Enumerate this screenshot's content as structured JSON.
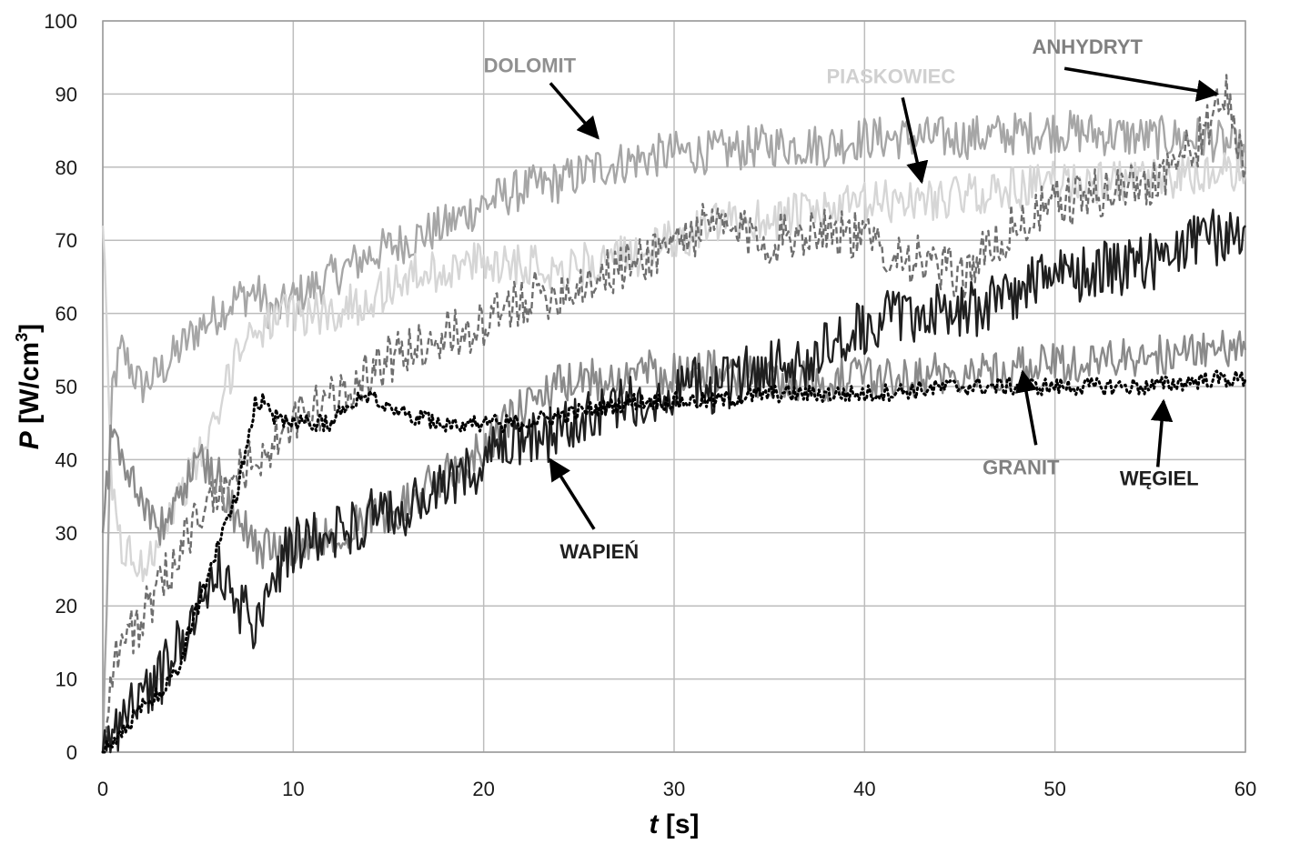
{
  "chart_data": {
    "type": "line",
    "title": "",
    "xlabel": {
      "italic": "t",
      "rest": " [s]"
    },
    "ylabel": {
      "italic": "P",
      "rest": " [W/cm",
      "sup": "3",
      "end": "]"
    },
    "xlim": [
      0,
      60
    ],
    "ylim": [
      0,
      100
    ],
    "xticks": [
      "0",
      "10",
      "20",
      "30",
      "40",
      "50",
      "60"
    ],
    "yticks": [
      "0",
      "10",
      "20",
      "30",
      "40",
      "50",
      "60",
      "70",
      "80",
      "90",
      "100"
    ],
    "grid": true,
    "legend": "none (inline annotations with arrows)",
    "series": [
      {
        "name": "DOLOMIT",
        "color": "#a6a6a6",
        "dash": "solid",
        "x": [
          0,
          0.5,
          1,
          2,
          3,
          4,
          5,
          6,
          7,
          8,
          9,
          10,
          12,
          14,
          16,
          18,
          20,
          22,
          24,
          26,
          28,
          30,
          32,
          35,
          38,
          40,
          45,
          50,
          55,
          58,
          60
        ],
        "y": [
          0,
          50,
          55,
          50,
          52,
          55,
          58,
          60,
          62,
          63,
          60,
          62,
          65,
          68,
          70,
          72,
          75,
          77,
          78,
          80,
          81,
          82,
          82,
          83,
          83,
          84,
          84,
          85,
          84,
          84,
          82
        ]
      },
      {
        "name": "PIASKOWIEC",
        "color": "#d6d6d6",
        "dash": "solid",
        "x": [
          0,
          0.5,
          1,
          2,
          3,
          4,
          5,
          6,
          7,
          8,
          10,
          12,
          14,
          16,
          18,
          20,
          22,
          24,
          26,
          28,
          30,
          32,
          35,
          38,
          40,
          45,
          50,
          55,
          58,
          60
        ],
        "y": [
          72,
          35,
          28,
          25,
          30,
          35,
          40,
          45,
          55,
          58,
          60,
          60,
          62,
          65,
          66,
          67,
          67,
          66,
          67,
          68,
          70,
          72,
          73,
          74,
          75,
          76,
          78,
          78,
          79,
          79
        ]
      },
      {
        "name": "ANHYDRYT",
        "color": "#6f6f6f",
        "dash": "dashed",
        "x": [
          0,
          0.5,
          1,
          2,
          3,
          4,
          5,
          6,
          7,
          8,
          9,
          10,
          12,
          14,
          16,
          18,
          20,
          22,
          24,
          26,
          28,
          30,
          32,
          35,
          38,
          40,
          42,
          45,
          48,
          50,
          55,
          57,
          58,
          59,
          60
        ],
        "y": [
          0,
          12,
          15,
          18,
          22,
          28,
          32,
          35,
          38,
          40,
          42,
          45,
          48,
          52,
          55,
          57,
          58,
          62,
          63,
          65,
          67,
          70,
          72,
          70,
          72,
          70,
          68,
          65,
          72,
          75,
          78,
          82,
          85,
          90,
          80
        ]
      },
      {
        "name": "GRANIT",
        "color": "#8a8a8a",
        "dash": "solid",
        "x": [
          0,
          0.5,
          1,
          2,
          3,
          4,
          5,
          6,
          7,
          8,
          10,
          12,
          14,
          16,
          18,
          20,
          22,
          24,
          26,
          28,
          30,
          32,
          35,
          38,
          40,
          45,
          50,
          55,
          58,
          60
        ],
        "y": [
          30,
          45,
          40,
          35,
          30,
          35,
          40,
          38,
          32,
          28,
          28,
          30,
          32,
          34,
          38,
          42,
          47,
          50,
          51,
          52,
          52,
          52,
          51,
          51,
          51,
          52,
          53,
          54,
          55,
          55
        ]
      },
      {
        "name": "WAPIEŃ",
        "color": "#1f1f1f",
        "dash": "solid",
        "x": [
          0,
          0.5,
          1,
          2,
          3,
          4,
          5,
          6,
          7,
          8,
          9,
          10,
          12,
          14,
          16,
          18,
          20,
          22,
          24,
          26,
          28,
          30,
          32,
          34,
          36,
          38,
          40,
          42,
          45,
          48,
          50,
          55,
          58,
          60
        ],
        "y": [
          0,
          2,
          5,
          8,
          10,
          15,
          20,
          25,
          20,
          18,
          25,
          28,
          30,
          32,
          33,
          36,
          40,
          42,
          44,
          46,
          48,
          50,
          50,
          52,
          53,
          55,
          58,
          60,
          60,
          63,
          65,
          67,
          70,
          72
        ]
      },
      {
        "name": "WĘGIEL",
        "color": "#000000",
        "dash": "dotted",
        "x": [
          0,
          0.5,
          1,
          2,
          3,
          4,
          5,
          6,
          7,
          8,
          8.5,
          9,
          10,
          11,
          12,
          13,
          14,
          16,
          18,
          20,
          22,
          24,
          26,
          28,
          30,
          32,
          35,
          38,
          40,
          45,
          50,
          55,
          58,
          60
        ],
        "y": [
          0,
          1,
          3,
          6,
          8,
          12,
          20,
          28,
          35,
          48,
          48,
          46,
          45,
          45,
          45,
          48,
          49,
          46,
          45,
          45,
          45,
          46,
          47,
          48,
          48,
          48,
          49,
          49,
          49,
          50,
          50,
          50,
          51,
          51
        ]
      }
    ],
    "annotations": [
      {
        "text": "DOLOMIT",
        "color": "#909090",
        "bold": true,
        "label_at": [
          20.0,
          93.0
        ],
        "arrow_from": [
          23.5,
          91.5
        ],
        "arrow_to": [
          26.0,
          84.0
        ]
      },
      {
        "text": "PIASKOWIEC",
        "color": "#d0d0d0",
        "bold": true,
        "label_at": [
          38.0,
          91.5
        ],
        "arrow_from": [
          42.0,
          89.5
        ],
        "arrow_to": [
          43.0,
          78.0
        ]
      },
      {
        "text": "ANHYDRYT",
        "color": "#808080",
        "bold": false,
        "label_at": [
          48.8,
          95.5
        ],
        "arrow_from": [
          50.5,
          93.5
        ],
        "arrow_to": [
          58.5,
          90.0
        ]
      },
      {
        "text": "GRANIT",
        "color": "#808080",
        "bold": true,
        "label_at": [
          46.2,
          38.0
        ],
        "arrow_from": [
          49.0,
          42.0
        ],
        "arrow_to": [
          48.3,
          52.0
        ]
      },
      {
        "text": "WĘGIEL",
        "color": "#1f1f1f",
        "bold": false,
        "label_at": [
          53.4,
          36.5
        ],
        "arrow_from": [
          55.4,
          39.0
        ],
        "arrow_to": [
          55.7,
          48.0
        ]
      },
      {
        "text": "WAPIEŃ",
        "color": "#1f1f1f",
        "bold": true,
        "label_at": [
          24.0,
          26.5
        ],
        "arrow_from": [
          25.8,
          30.5
        ],
        "arrow_to": [
          23.5,
          40.0
        ]
      }
    ]
  }
}
